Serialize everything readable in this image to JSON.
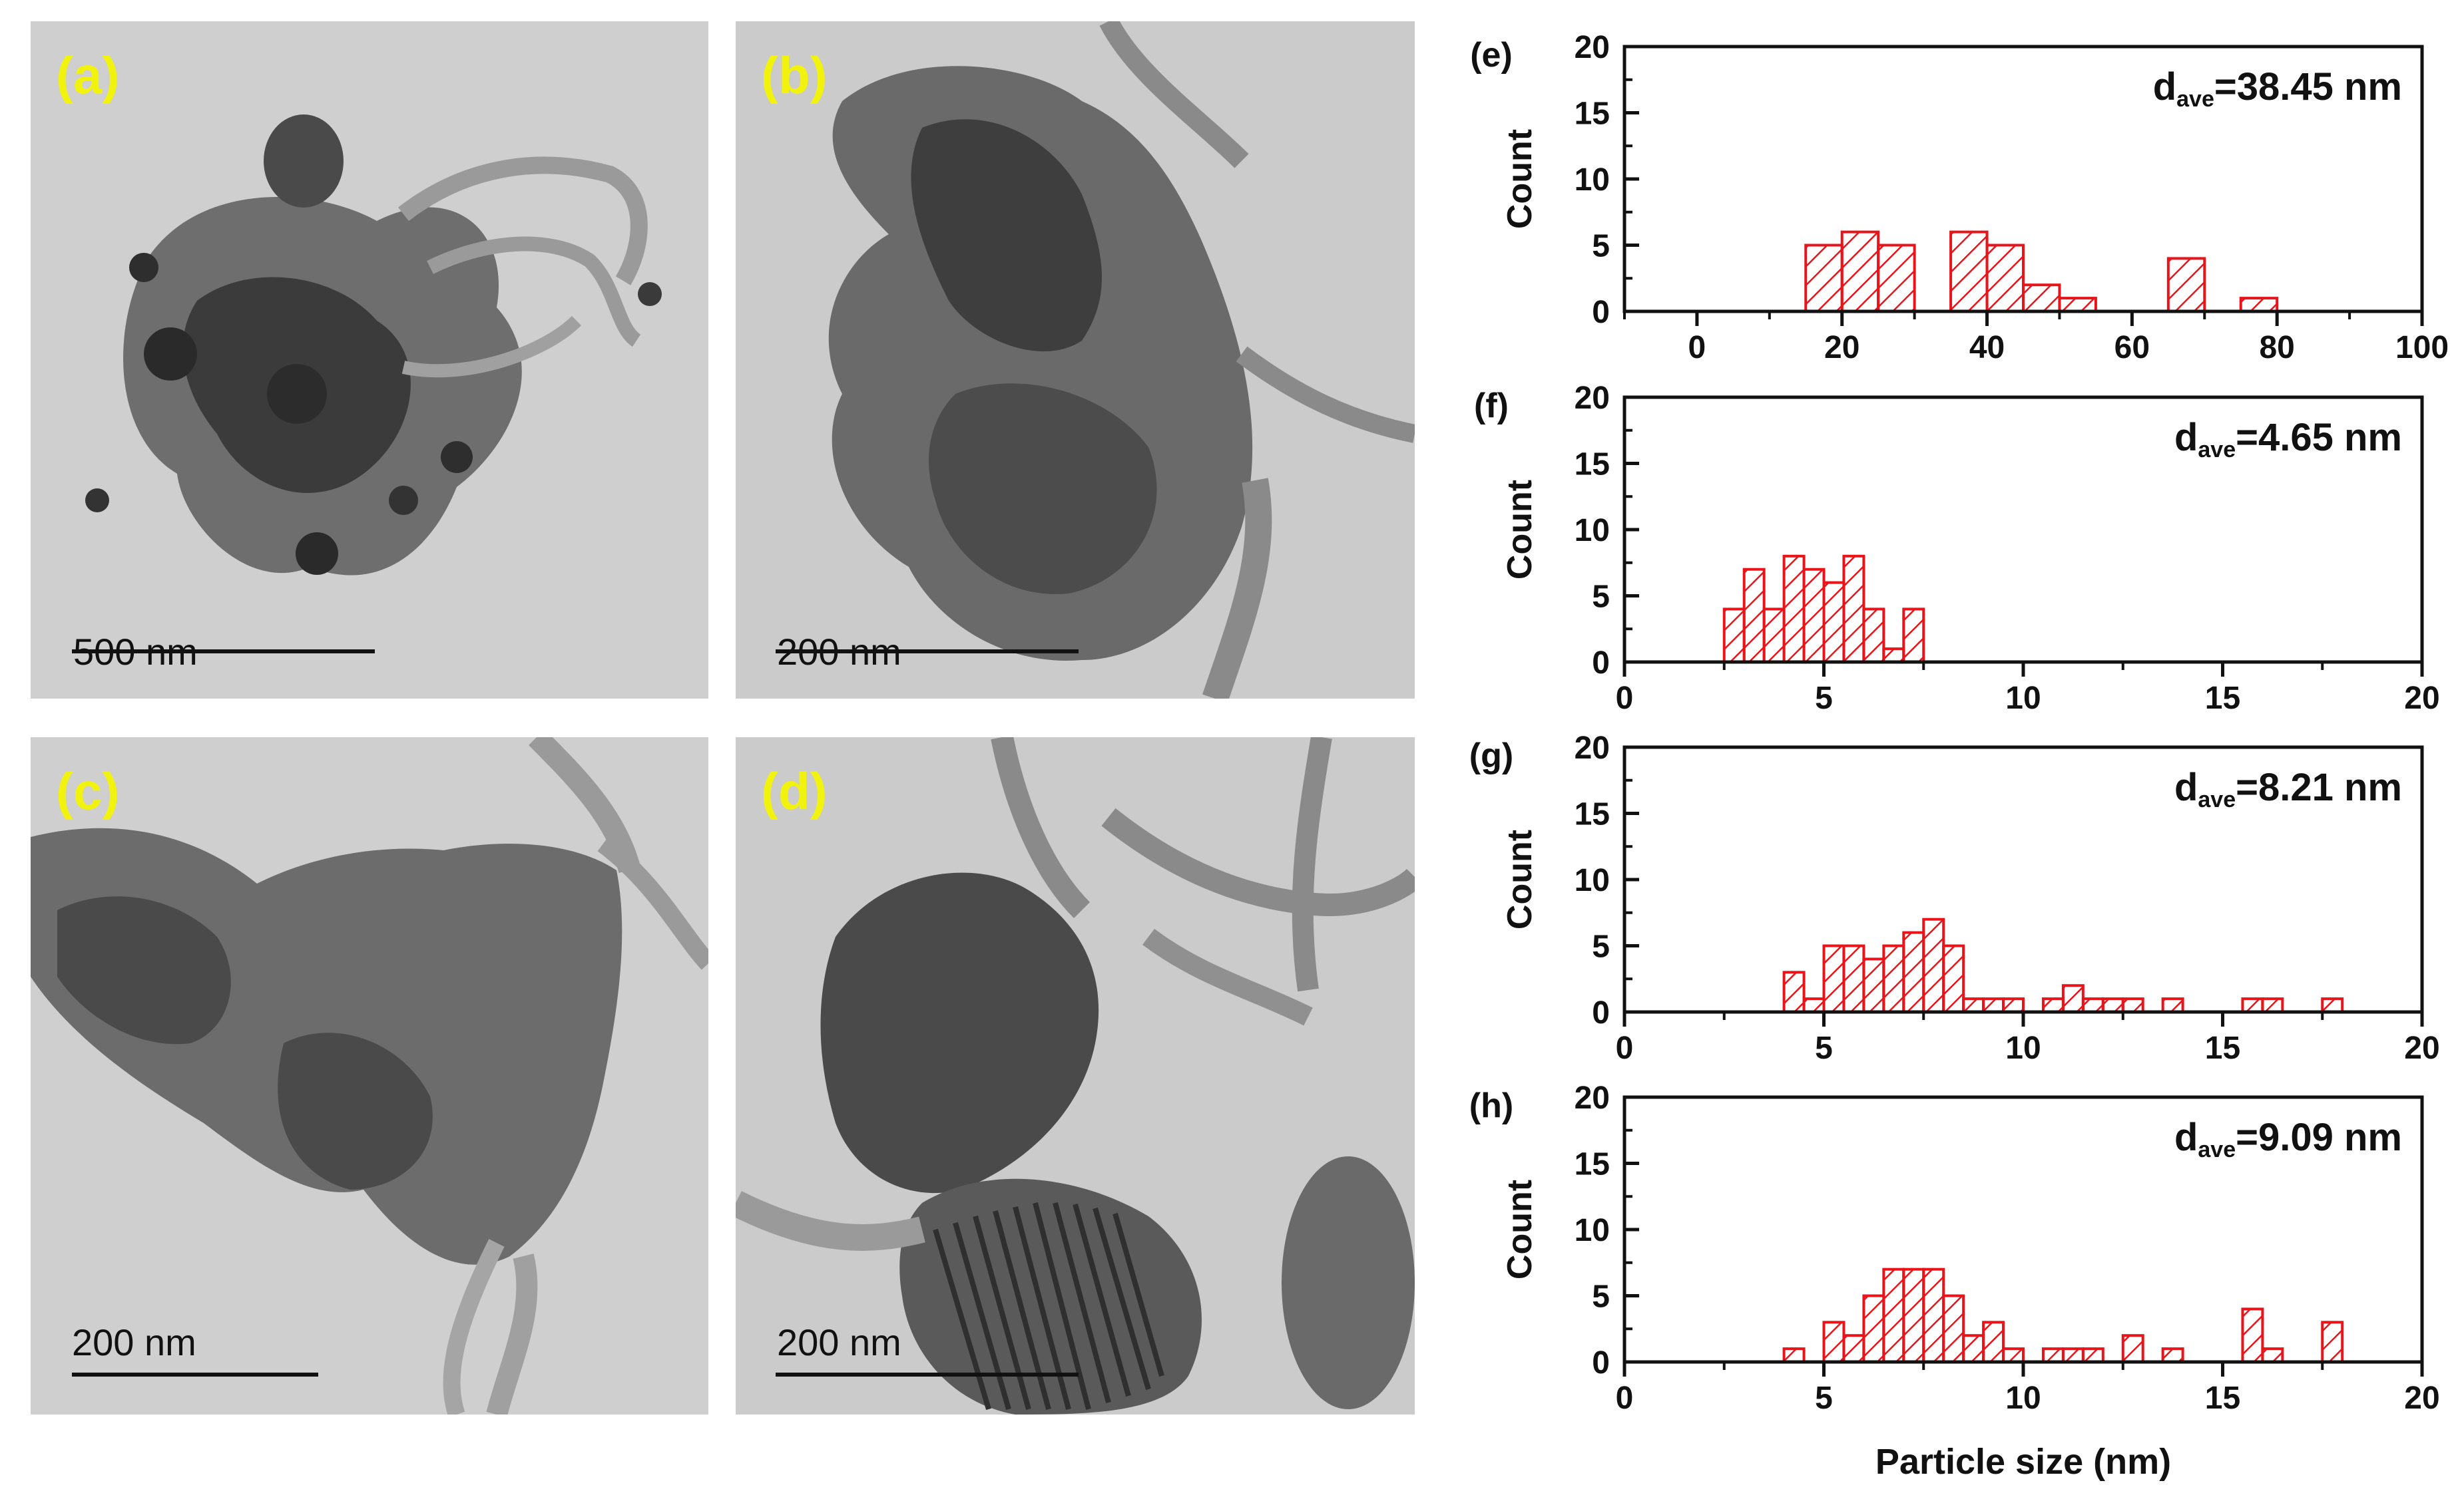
{
  "tem_panels": [
    {
      "label": "(a)",
      "scale_text": "500 nm"
    },
    {
      "label": "(b)",
      "scale_text": "200 nm"
    },
    {
      "label": "(c)",
      "scale_text": "200 nm"
    },
    {
      "label": "(d)",
      "scale_text": "200 nm"
    }
  ],
  "colors": {
    "bar": "#e8141a",
    "panel_label": "#f2f20f",
    "axis": "#111111"
  },
  "chart_data": [
    {
      "type": "bar",
      "panel_label": "(e)",
      "annotation_main": "d",
      "annotation_sub": "ave",
      "annotation_value": "=38.45 nm",
      "ylabel": "Count",
      "xlim": [
        -10,
        100
      ],
      "ylim": [
        0,
        20
      ],
      "bin_width": 5,
      "xticks": [
        0,
        20,
        40,
        60,
        80,
        100
      ],
      "yticks": [
        0,
        5,
        10,
        15,
        20
      ],
      "x": [
        17.5,
        22.5,
        27.5,
        37.5,
        42.5,
        47.5,
        52.5,
        67.5,
        77.5
      ],
      "values": [
        5,
        6,
        5,
        6,
        5,
        2,
        1,
        4,
        1
      ]
    },
    {
      "type": "bar",
      "panel_label": "(f)",
      "annotation_main": "d",
      "annotation_sub": "ave",
      "annotation_value": "=4.65 nm",
      "ylabel": "Count",
      "xlim": [
        0,
        20
      ],
      "ylim": [
        0,
        20
      ],
      "bin_width": 0.5,
      "xticks": [
        0,
        5,
        10,
        15,
        20
      ],
      "yticks": [
        0,
        5,
        10,
        15,
        20
      ],
      "x": [
        2.75,
        3.25,
        3.75,
        4.25,
        4.75,
        5.25,
        5.75,
        6.25,
        6.75,
        7.25
      ],
      "values": [
        4,
        7,
        4,
        8,
        7,
        6,
        8,
        4,
        1,
        4
      ]
    },
    {
      "type": "bar",
      "panel_label": "(g)",
      "annotation_main": "d",
      "annotation_sub": "ave",
      "annotation_value": "=8.21 nm",
      "ylabel": "Count",
      "xlim": [
        0,
        20
      ],
      "ylim": [
        0,
        20
      ],
      "bin_width": 0.5,
      "xticks": [
        0,
        5,
        10,
        15,
        20
      ],
      "yticks": [
        0,
        5,
        10,
        15,
        20
      ],
      "x": [
        4.25,
        4.75,
        5.25,
        5.75,
        6.25,
        6.75,
        7.25,
        7.75,
        8.25,
        8.75,
        9.25,
        9.75,
        10.75,
        11.25,
        11.75,
        12.25,
        12.75,
        13.75,
        15.75,
        16.25,
        17.75
      ],
      "values": [
        3,
        1,
        5,
        5,
        4,
        5,
        6,
        7,
        5,
        1,
        1,
        1,
        1,
        2,
        1,
        1,
        1,
        1,
        1,
        1,
        1
      ]
    },
    {
      "type": "bar",
      "panel_label": "(h)",
      "annotation_main": "d",
      "annotation_sub": "ave",
      "annotation_value": "=9.09 nm",
      "ylabel": "Count",
      "xlabel": "Particle size (nm)",
      "xlim": [
        0,
        20
      ],
      "ylim": [
        0,
        20
      ],
      "bin_width": 0.5,
      "xticks": [
        0,
        5,
        10,
        15,
        20
      ],
      "yticks": [
        0,
        5,
        10,
        15,
        20
      ],
      "x": [
        4.25,
        5.25,
        5.75,
        6.25,
        6.75,
        7.25,
        7.75,
        8.25,
        8.75,
        9.25,
        9.75,
        10.75,
        11.25,
        11.75,
        12.75,
        13.75,
        15.75,
        16.25,
        17.75
      ],
      "values": [
        1,
        3,
        2,
        5,
        7,
        7,
        7,
        5,
        2,
        3,
        1,
        1,
        1,
        1,
        2,
        1,
        4,
        1,
        3
      ]
    }
  ]
}
